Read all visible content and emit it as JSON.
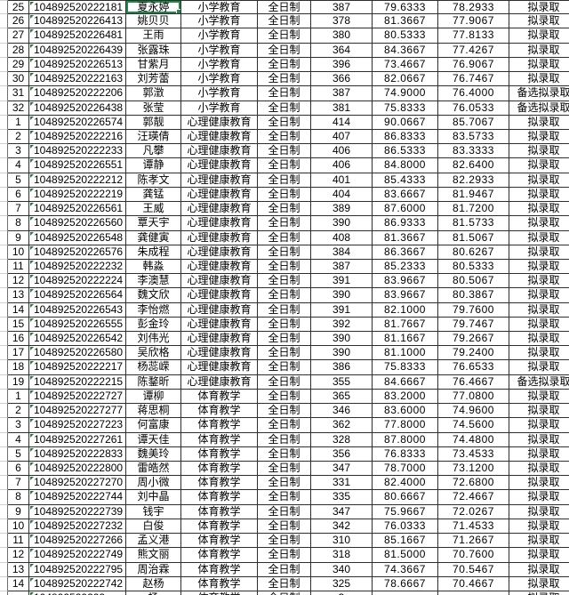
{
  "app": {
    "kind": "spreadsheet-grid",
    "description_labels": {
      "full_time": "全日制",
      "admit": "拟录取",
      "alternate_admit": "备选拟录取"
    },
    "majors_visible": [
      "小学教育",
      "心理健康教育",
      "体育教学"
    ]
  },
  "selection": {
    "row_index": 0,
    "column": "name",
    "value": "夏永婷"
  },
  "columns": [
    "num",
    "id",
    "name",
    "major",
    "study_type",
    "initial_score",
    "retest_score",
    "weighted_score",
    "status"
  ],
  "rows": [
    [
      "25",
      "104892520222181",
      "夏永婷",
      "小学教育",
      "全日制",
      "387",
      "79.6333",
      "78.2933",
      "拟录取"
    ],
    [
      "26",
      "104892520226413",
      "姚贝贝",
      "小学教育",
      "全日制",
      "378",
      "81.3667",
      "77.9067",
      "拟录取"
    ],
    [
      "27",
      "104892520226481",
      "王雨",
      "小学教育",
      "全日制",
      "380",
      "80.5333",
      "77.8133",
      "拟录取"
    ],
    [
      "28",
      "104892520226439",
      "张露珠",
      "小学教育",
      "全日制",
      "364",
      "84.3667",
      "77.4267",
      "拟录取"
    ],
    [
      "29",
      "104892520226513",
      "甘紫月",
      "小学教育",
      "全日制",
      "396",
      "73.4667",
      "76.9067",
      "拟录取"
    ],
    [
      "30",
      "104892520222163",
      "刘芳蕾",
      "小学教育",
      "全日制",
      "366",
      "82.0667",
      "76.7467",
      "拟录取"
    ],
    [
      "31",
      "104892520222206",
      "郭澂",
      "小学教育",
      "全日制",
      "387",
      "74.9000",
      "76.4000",
      "备选拟录取"
    ],
    [
      "32",
      "104892520226438",
      "张莹",
      "小学教育",
      "全日制",
      "381",
      "75.8333",
      "76.0533",
      "备选拟录取"
    ],
    [
      "1",
      "104892520226574",
      "郭靓",
      "心理健康教育",
      "全日制",
      "414",
      "90.0667",
      "85.7067",
      "拟录取"
    ],
    [
      "2",
      "104892520222216",
      "汪瑛倩",
      "心理健康教育",
      "全日制",
      "407",
      "86.8333",
      "83.5733",
      "拟录取"
    ],
    [
      "3",
      "104892520222233",
      "凡攀",
      "心理健康教育",
      "全日制",
      "406",
      "86.5333",
      "83.3333",
      "拟录取"
    ],
    [
      "4",
      "104892520226551",
      "谭静",
      "心理健康教育",
      "全日制",
      "406",
      "84.8000",
      "82.6400",
      "拟录取"
    ],
    [
      "5",
      "104892520222212",
      "陈孝文",
      "心理健康教育",
      "全日制",
      "401",
      "85.4333",
      "82.2933",
      "拟录取"
    ],
    [
      "6",
      "104892520222219",
      "龚锰",
      "心理健康教育",
      "全日制",
      "404",
      "83.6667",
      "81.9467",
      "拟录取"
    ],
    [
      "7",
      "104892520226561",
      "王威",
      "心理健康教育",
      "全日制",
      "389",
      "87.6000",
      "81.7200",
      "拟录取"
    ],
    [
      "8",
      "104892520226560",
      "覃天宇",
      "心理健康教育",
      "全日制",
      "390",
      "86.9333",
      "81.5733",
      "拟录取"
    ],
    [
      "9",
      "104892520226548",
      "龚健寅",
      "心理健康教育",
      "全日制",
      "408",
      "81.3667",
      "81.5067",
      "拟录取"
    ],
    [
      "10",
      "104892520226576",
      "朱成程",
      "心理健康教育",
      "全日制",
      "384",
      "86.3667",
      "80.6267",
      "拟录取"
    ],
    [
      "11",
      "104892520222232",
      "韩淼",
      "心理健康教育",
      "全日制",
      "387",
      "85.2333",
      "80.5333",
      "拟录取"
    ],
    [
      "12",
      "104892520222224",
      "李澳慧",
      "心理健康教育",
      "全日制",
      "391",
      "83.9667",
      "80.5067",
      "拟录取"
    ],
    [
      "13",
      "104892520226564",
      "魏文欣",
      "心理健康教育",
      "全日制",
      "390",
      "83.9667",
      "80.3867",
      "拟录取"
    ],
    [
      "14",
      "104892520226543",
      "李怡燃",
      "心理健康教育",
      "全日制",
      "391",
      "82.1000",
      "79.7600",
      "拟录取"
    ],
    [
      "15",
      "104892520226555",
      "彭金玲",
      "心理健康教育",
      "全日制",
      "392",
      "81.7667",
      "79.7467",
      "拟录取"
    ],
    [
      "16",
      "104892520226542",
      "刘伟光",
      "心理健康教育",
      "全日制",
      "390",
      "81.1667",
      "79.2667",
      "拟录取"
    ],
    [
      "17",
      "104892520226580",
      "吴欣格",
      "心理健康教育",
      "全日制",
      "390",
      "81.1000",
      "79.2400",
      "拟录取"
    ],
    [
      "18",
      "104892520222217",
      "杨蕊嵘",
      "心理健康教育",
      "全日制",
      "386",
      "75.8333",
      "76.6533",
      "拟录取"
    ],
    [
      "19",
      "104892520222215",
      "陈鍪昕",
      "心理健康教育",
      "全日制",
      "355",
      "84.6667",
      "76.4667",
      "备选拟录取"
    ],
    [
      "1",
      "104892520222727",
      "谭柳",
      "体育教学",
      "全日制",
      "365",
      "83.2000",
      "77.0800",
      "拟录取"
    ],
    [
      "2",
      "104892520227277",
      "蒋思桐",
      "体育教学",
      "全日制",
      "346",
      "83.6000",
      "74.9600",
      "拟录取"
    ],
    [
      "3",
      "104892520227223",
      "何富康",
      "体育教学",
      "全日制",
      "362",
      "77.8000",
      "74.5600",
      "拟录取"
    ],
    [
      "4",
      "104892520227261",
      "谭天佳",
      "体育教学",
      "全日制",
      "328",
      "87.8000",
      "74.4800",
      "拟录取"
    ],
    [
      "5",
      "104892520222833",
      "魏美玲",
      "体育教学",
      "全日制",
      "356",
      "76.8333",
      "73.4533",
      "拟录取"
    ],
    [
      "6",
      "104892520222800",
      "雷皓然",
      "体育教学",
      "全日制",
      "347",
      "78.7000",
      "73.1200",
      "拟录取"
    ],
    [
      "7",
      "104892520227270",
      "周小微",
      "体育教学",
      "全日制",
      "331",
      "82.4000",
      "72.6800",
      "拟录取"
    ],
    [
      "8",
      "104892520222744",
      "刘中晶",
      "体育教学",
      "全日制",
      "335",
      "80.6667",
      "72.4667",
      "拟录取"
    ],
    [
      "9",
      "104892520222739",
      "钱宇",
      "体育教学",
      "全日制",
      "347",
      "75.9667",
      "72.0267",
      "拟录取"
    ],
    [
      "10",
      "104892520227232",
      "白俊",
      "体育教学",
      "全日制",
      "342",
      "76.0333",
      "71.4533",
      "拟录取"
    ],
    [
      "11",
      "104892520227266",
      "孟义港",
      "体育教学",
      "全日制",
      "310",
      "85.1667",
      "71.2667",
      "拟录取"
    ],
    [
      "12",
      "104892520222749",
      "熊文丽",
      "体育教学",
      "全日制",
      "318",
      "81.5000",
      "70.7600",
      "拟录取"
    ],
    [
      "13",
      "104892520222795",
      "周治霖",
      "体育教学",
      "全日制",
      "340",
      "74.3667",
      "70.5467",
      "拟录取"
    ],
    [
      "14",
      "104892520222742",
      "赵杨",
      "体育教学",
      "全日制",
      "325",
      "78.6667",
      "70.4667",
      "拟录取"
    ]
  ],
  "partial_row": [
    "",
    "104892520222",
    "杨",
    "体育教学",
    "全日制",
    "3",
    "",
    "",
    "拟录取"
  ],
  "colors": {
    "selection_border_green": "#1d8a4a",
    "stored_as_text_triangle_green": "#1e7b34",
    "cell_border": "#2e2e2e",
    "gridline_light": "#cfcfcf",
    "cell_background": "#ffffff",
    "text": "#000000"
  }
}
